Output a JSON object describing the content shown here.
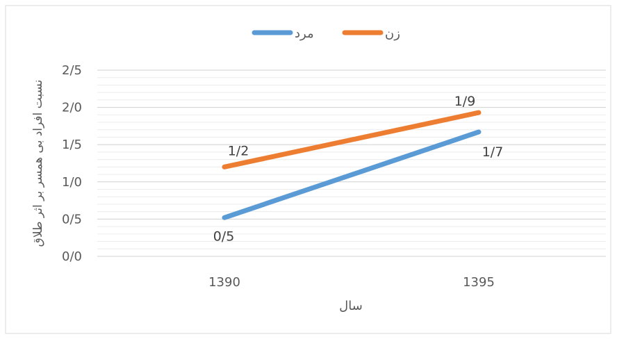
{
  "chart_data": {
    "type": "line",
    "title": "",
    "xlabel": "سال",
    "ylabel": "نسبت افراد بی همسر بر اثر طلاق",
    "categories": [
      "1390",
      "1395"
    ],
    "ylim": [
      0,
      2.5
    ],
    "yticks": [
      "0/0",
      "0/5",
      "1/0",
      "1/5",
      "2/0",
      "2/5"
    ],
    "ytick_values": [
      0,
      0.5,
      1.0,
      1.5,
      2.0,
      2.5
    ],
    "grid": true,
    "legend_position": "top",
    "series": [
      {
        "name": "زن",
        "values": [
          1.2,
          1.93
        ],
        "labels": [
          "1/2",
          "1/9"
        ],
        "color": "#ED7D31"
      },
      {
        "name": "مرد",
        "values": [
          0.52,
          1.67
        ],
        "labels": [
          "0/5",
          "1/7"
        ],
        "color": "#5B9BD5"
      }
    ]
  }
}
